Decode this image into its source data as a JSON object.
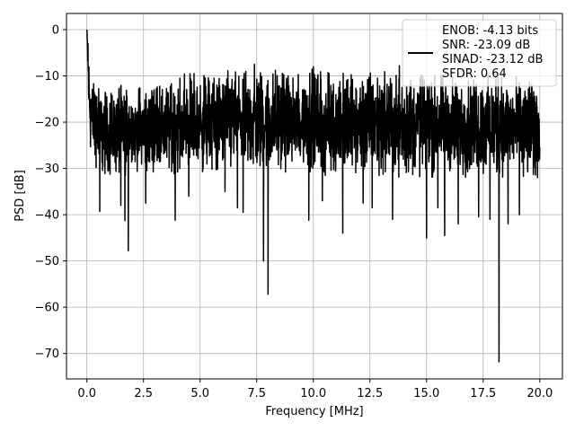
{
  "chart_data": {
    "type": "line",
    "title": "",
    "xlabel": "Frequency [MHz]",
    "ylabel": "PSD [dB]",
    "xlim": [
      -0.9,
      21.0
    ],
    "ylim": [
      -75.5,
      3.5
    ],
    "xticks": [
      0.0,
      2.5,
      5.0,
      7.5,
      10.0,
      12.5,
      15.0,
      17.5,
      20.0
    ],
    "xtick_labels": [
      "0.0",
      "2.5",
      "5.0",
      "7.5",
      "10.0",
      "12.5",
      "15.0",
      "17.5",
      "20.0"
    ],
    "yticks": [
      0,
      -10,
      -20,
      -30,
      -40,
      -50,
      -60,
      -70
    ],
    "ytick_labels": [
      "0",
      "−10",
      "−20",
      "−30",
      "−40",
      "−50",
      "−60",
      "−70"
    ],
    "grid": true,
    "legend_position": "top-right",
    "series": [
      {
        "name": "ENOB: -4.13 bits\nSNR: -23.09 dB\nSINAD: -23.12 dB\nSFDR: 0.64",
        "color": "#000000",
        "envelope": {
          "x": [
            0.0,
            0.1,
            0.2,
            0.4,
            0.6,
            1.0,
            1.5,
            2.0,
            2.5,
            3.0,
            3.5,
            4.0,
            4.5,
            5.0,
            5.5,
            6.0,
            6.5,
            7.0,
            7.5,
            8.0,
            8.5,
            9.0,
            9.5,
            10.0,
            10.5,
            11.0,
            11.5,
            12.0,
            12.5,
            13.0,
            13.5,
            14.0,
            14.5,
            15.0,
            15.5,
            16.0,
            16.5,
            17.0,
            17.5,
            18.0,
            18.5,
            19.0,
            19.5,
            20.0
          ],
          "upper": [
            0,
            -5,
            -10,
            -11,
            -12,
            -13,
            -12,
            -12,
            -12,
            -11,
            -11,
            -10,
            -9,
            -10,
            -9,
            -9,
            -8,
            -9,
            -8,
            -9,
            -8,
            -9,
            -9,
            -8,
            -9,
            -9,
            -9,
            -10,
            -9,
            -8,
            -9,
            -9,
            -9,
            -9,
            -8,
            -10,
            -10,
            -9,
            -10,
            -9,
            -10,
            -10,
            -10,
            -10
          ],
          "lower": [
            0,
            -25,
            -28,
            -30,
            -31,
            -32,
            -32,
            -31,
            -31,
            -31,
            -32,
            -31,
            -31,
            -31,
            -31,
            -31,
            -31,
            -31,
            -32,
            -31,
            -31,
            -31,
            -31,
            -31,
            -32,
            -32,
            -32,
            -32,
            -32,
            -32,
            -32,
            -32,
            -32,
            -32,
            -32,
            -32,
            -32,
            -32,
            -32,
            -32,
            -32,
            -32,
            -33,
            -33
          ]
        },
        "dips": [
          {
            "x": 0.57,
            "y": -39.3
          },
          {
            "x": 1.5,
            "y": -38.0
          },
          {
            "x": 1.68,
            "y": -41.3
          },
          {
            "x": 1.83,
            "y": -47.8
          },
          {
            "x": 2.6,
            "y": -37.5
          },
          {
            "x": 3.9,
            "y": -41.2
          },
          {
            "x": 4.5,
            "y": -36.0
          },
          {
            "x": 6.1,
            "y": -35.0
          },
          {
            "x": 6.65,
            "y": -38.5
          },
          {
            "x": 6.9,
            "y": -39.5
          },
          {
            "x": 7.8,
            "y": -50.0
          },
          {
            "x": 8.0,
            "y": -57.2
          },
          {
            "x": 9.8,
            "y": -41.2
          },
          {
            "x": 10.4,
            "y": -37.0
          },
          {
            "x": 11.3,
            "y": -44.0
          },
          {
            "x": 12.2,
            "y": -37.5
          },
          {
            "x": 12.6,
            "y": -38.5
          },
          {
            "x": 13.5,
            "y": -41.0
          },
          {
            "x": 15.0,
            "y": -45.0
          },
          {
            "x": 15.5,
            "y": -38.5
          },
          {
            "x": 15.8,
            "y": -44.5
          },
          {
            "x": 16.4,
            "y": -42.0
          },
          {
            "x": 17.3,
            "y": -40.5
          },
          {
            "x": 17.8,
            "y": -41.0
          },
          {
            "x": 18.2,
            "y": -71.8
          },
          {
            "x": 18.6,
            "y": -42.0
          },
          {
            "x": 19.1,
            "y": -40.0
          }
        ],
        "peaks": [
          {
            "x": 0.0,
            "y": 0.0
          },
          {
            "x": 0.05,
            "y": -3.0
          },
          {
            "x": 7.4,
            "y": -7.5
          },
          {
            "x": 13.8,
            "y": -7.8
          }
        ]
      }
    ]
  }
}
